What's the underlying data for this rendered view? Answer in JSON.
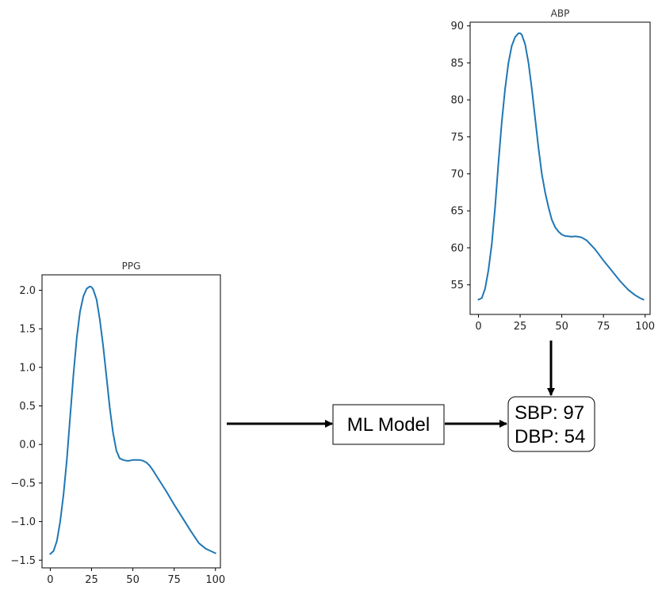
{
  "chart_data": [
    {
      "type": "line",
      "title": "PPG",
      "xlabel": "",
      "ylabel": "",
      "xlim": [
        -5,
        103
      ],
      "ylim": [
        -1.6,
        2.2
      ],
      "xticks": [
        0,
        25,
        50,
        75,
        100
      ],
      "yticks": [
        -1.5,
        -1.0,
        -0.5,
        0.0,
        0.5,
        1.0,
        1.5,
        2.0
      ],
      "ytick_labels": [
        "−1.5",
        "−1.0",
        "−0.5",
        "0.0",
        "0.5",
        "1.0",
        "1.5",
        "2.0"
      ],
      "grid": false,
      "series": [
        {
          "color": "#1f77b4",
          "x": [
            0,
            2,
            4,
            6,
            8,
            10,
            12,
            14,
            16,
            18,
            20,
            22,
            24,
            25,
            26,
            28,
            30,
            32,
            34,
            36,
            38,
            40,
            42,
            44,
            46,
            48,
            50,
            52,
            54,
            56,
            58,
            60,
            62,
            65,
            70,
            75,
            80,
            85,
            90,
            94,
            97,
            100
          ],
          "y": [
            -1.42,
            -1.38,
            -1.25,
            -1.0,
            -0.65,
            -0.2,
            0.35,
            0.9,
            1.38,
            1.72,
            1.92,
            2.02,
            2.05,
            2.04,
            2.01,
            1.88,
            1.62,
            1.28,
            0.88,
            0.48,
            0.15,
            -0.08,
            -0.18,
            -0.2,
            -0.21,
            -0.21,
            -0.2,
            -0.2,
            -0.2,
            -0.21,
            -0.23,
            -0.27,
            -0.33,
            -0.43,
            -0.6,
            -0.78,
            -0.95,
            -1.12,
            -1.28,
            -1.35,
            -1.38,
            -1.41
          ]
        }
      ]
    },
    {
      "type": "line",
      "title": "ABP",
      "xlabel": "",
      "ylabel": "",
      "xlim": [
        -5,
        103
      ],
      "ylim": [
        51,
        90.5
      ],
      "xticks": [
        0,
        25,
        50,
        75,
        100
      ],
      "yticks": [
        55,
        60,
        65,
        70,
        75,
        80,
        85,
        90
      ],
      "grid": false,
      "series": [
        {
          "color": "#1f77b4",
          "x": [
            0,
            2,
            4,
            6,
            8,
            10,
            12,
            14,
            16,
            18,
            20,
            22,
            24,
            25,
            26,
            28,
            30,
            32,
            34,
            36,
            38,
            40,
            42,
            44,
            46,
            48,
            50,
            52,
            54,
            56,
            58,
            60,
            62,
            65,
            70,
            75,
            80,
            85,
            90,
            94,
            97,
            99
          ],
          "y": [
            53.0,
            53.2,
            54.5,
            57.0,
            60.5,
            65.5,
            71.5,
            77.0,
            81.5,
            85.0,
            87.3,
            88.5,
            89.0,
            89.0,
            88.8,
            87.5,
            85.0,
            81.5,
            77.5,
            73.5,
            70.0,
            67.5,
            65.5,
            63.8,
            62.8,
            62.2,
            61.8,
            61.6,
            61.55,
            61.5,
            61.55,
            61.5,
            61.4,
            61.0,
            59.8,
            58.3,
            56.9,
            55.5,
            54.3,
            53.6,
            53.2,
            53.0
          ]
        }
      ]
    }
  ],
  "diagram": {
    "model_label": "ML Model",
    "output_lines": [
      "SBP: 97",
      "DBP: 54"
    ]
  }
}
